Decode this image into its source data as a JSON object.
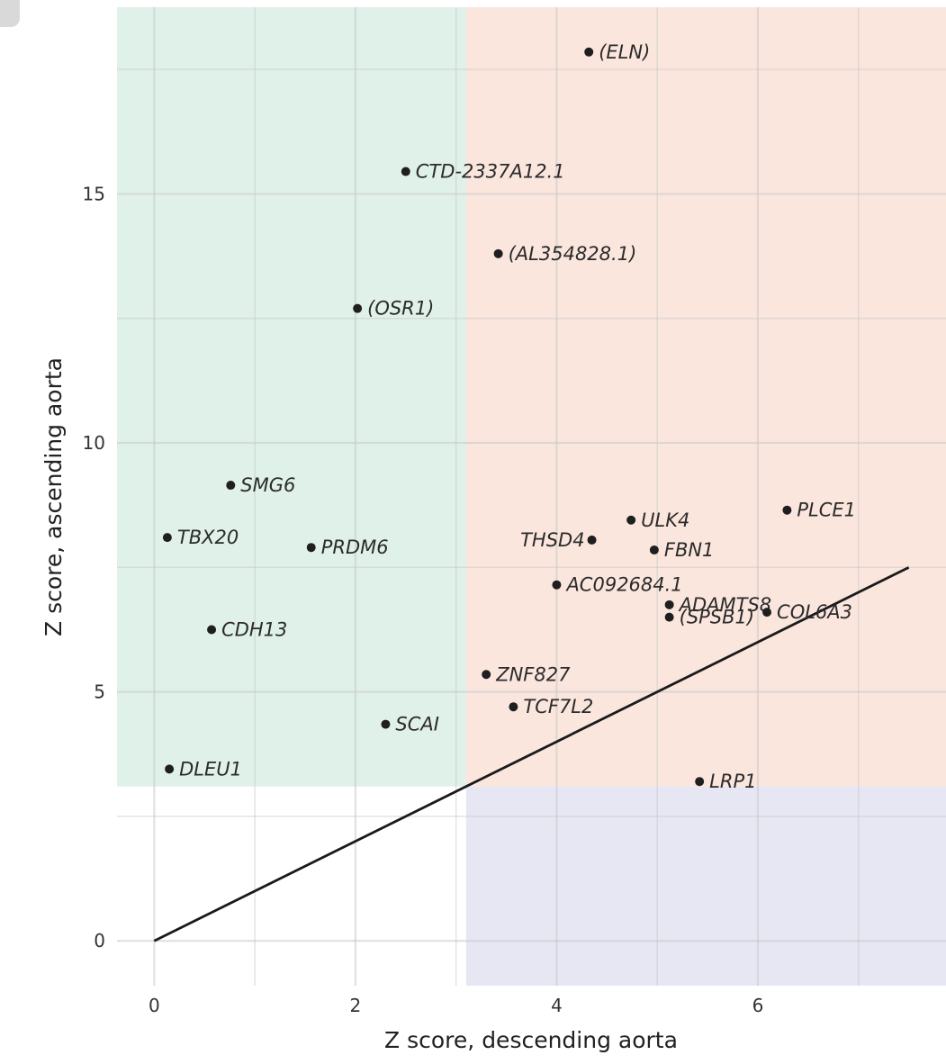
{
  "chart_data": {
    "type": "scatter",
    "xlabel": "Z score, descending aorta",
    "ylabel": "Z score, ascending aorta",
    "xlim": [
      -0.37,
      7.87
    ],
    "ylim": [
      -0.9,
      18.75
    ],
    "x_ticks": [
      "0",
      "2",
      "4",
      "6"
    ],
    "y_ticks": [
      "0",
      "5",
      "10",
      "15"
    ],
    "x_tick_values": [
      0,
      2,
      4,
      6
    ],
    "y_tick_values": [
      0,
      5,
      10,
      15
    ],
    "grid": true,
    "threshold": 3.1,
    "regions": {
      "ascending_only_color": "#e0f1ea",
      "both_color": "#fbe6de",
      "descending_only_color": "#e6e7f3"
    },
    "reference_line": {
      "x": [
        0,
        7.5
      ],
      "y": [
        0,
        7.5
      ],
      "color": "#1a1a1a"
    },
    "point_color": "#1f1f1f",
    "points": [
      {
        "label": "(ELN)",
        "x": 4.32,
        "y": 17.85,
        "anchor": "start"
      },
      {
        "label": "CTD-2337A12.1",
        "x": 2.5,
        "y": 15.45,
        "anchor": "start"
      },
      {
        "label": "(AL354828.1)",
        "x": 3.42,
        "y": 13.8,
        "anchor": "start"
      },
      {
        "label": "(OSR1)",
        "x": 2.02,
        "y": 12.7,
        "anchor": "start"
      },
      {
        "label": "SMG6",
        "x": 0.76,
        "y": 9.15,
        "anchor": "start"
      },
      {
        "label": "TBX20",
        "x": 0.13,
        "y": 8.1,
        "anchor": "start"
      },
      {
        "label": "PRDM6",
        "x": 1.56,
        "y": 7.9,
        "anchor": "start"
      },
      {
        "label": "CDH13",
        "x": 0.57,
        "y": 6.25,
        "anchor": "start"
      },
      {
        "label": "SCAI",
        "x": 2.3,
        "y": 4.35,
        "anchor": "start"
      },
      {
        "label": "DLEU1",
        "x": 0.15,
        "y": 3.45,
        "anchor": "start"
      },
      {
        "label": "PLCE1",
        "x": 6.29,
        "y": 8.65,
        "anchor": "start"
      },
      {
        "label": "ULK4",
        "x": 4.74,
        "y": 8.45,
        "anchor": "start"
      },
      {
        "label": "THSD4",
        "x": 4.35,
        "y": 8.05,
        "anchor": "end"
      },
      {
        "label": "FBN1",
        "x": 4.97,
        "y": 7.85,
        "anchor": "start"
      },
      {
        "label": "AC092684.1",
        "x": 4.0,
        "y": 7.15,
        "anchor": "start"
      },
      {
        "label": "ADAMTS8",
        "x": 5.12,
        "y": 6.75,
        "anchor": "start"
      },
      {
        "label": "(SPSB1)",
        "x": 5.12,
        "y": 6.5,
        "anchor": "start"
      },
      {
        "label": "COL6A3",
        "x": 6.09,
        "y": 6.6,
        "anchor": "start"
      },
      {
        "label": "ZNF827",
        "x": 3.3,
        "y": 5.35,
        "anchor": "start"
      },
      {
        "label": "TCF7L2",
        "x": 3.57,
        "y": 4.7,
        "anchor": "start"
      },
      {
        "label": "LRP1",
        "x": 5.42,
        "y": 3.2,
        "anchor": "start"
      }
    ]
  }
}
